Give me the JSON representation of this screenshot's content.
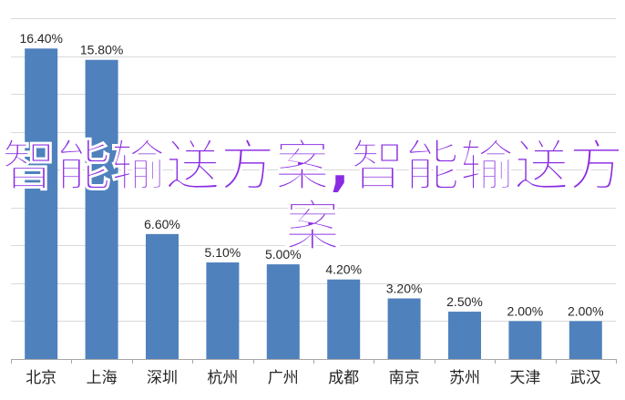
{
  "chart_data": {
    "type": "bar",
    "categories": [
      "北京",
      "上海",
      "深圳",
      "杭州",
      "广州",
      "成都",
      "南京",
      "苏州",
      "天津",
      "武汉"
    ],
    "values": [
      16.4,
      15.8,
      6.6,
      5.1,
      5.0,
      4.2,
      3.2,
      2.5,
      2.0,
      2.0
    ],
    "value_labels": [
      "16.40%",
      "15.80%",
      "6.60%",
      "5.10%",
      "5.00%",
      "4.20%",
      "3.20%",
      "2.50%",
      "2.00%",
      "2.00%"
    ],
    "ylim": [
      0,
      18
    ],
    "grid": true,
    "bar_color": "#4f81bd",
    "title": "",
    "xlabel": "",
    "ylabel": ""
  },
  "overlay_text": "智能输送方案,智能输送方案"
}
